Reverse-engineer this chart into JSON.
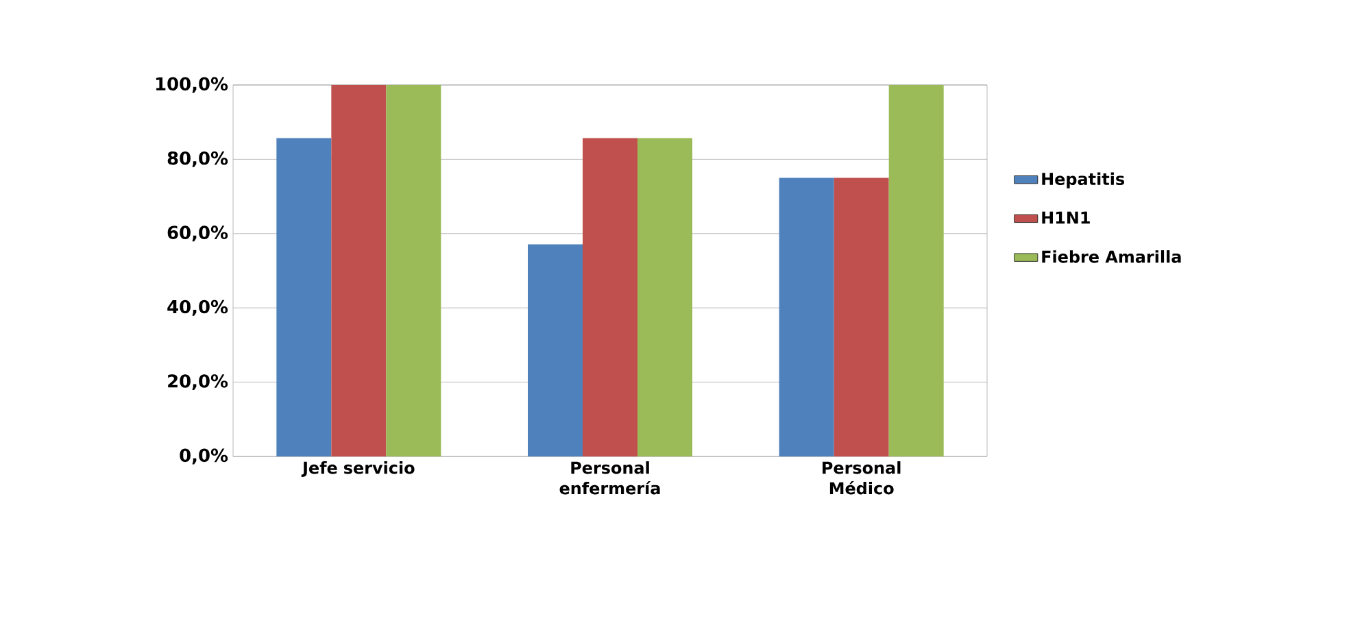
{
  "chart_data": {
    "type": "bar",
    "categories": [
      "Jefe servicio",
      "Personal enfermería",
      "Personal Médico"
    ],
    "series": [
      {
        "name": "Hepatitis",
        "color": "#4f81bd",
        "values": [
          85.7,
          57.1,
          75
        ]
      },
      {
        "name": "H1N1",
        "color": "#c0504d",
        "values": [
          100,
          85.7,
          75
        ]
      },
      {
        "name": "Fiebre Amarilla",
        "color": "#9bbb59",
        "values": [
          100,
          85.7,
          100
        ]
      }
    ],
    "ylim": [
      0,
      100
    ],
    "yticks": [
      {
        "value": 0,
        "label": "0,0%"
      },
      {
        "value": 20,
        "label": "20,0%"
      },
      {
        "value": 40,
        "label": "40,0%"
      },
      {
        "value": 60,
        "label": "60,0%"
      },
      {
        "value": 80,
        "label": "80,0%"
      },
      {
        "value": 100,
        "label": "100,0%"
      }
    ],
    "grid": "y",
    "legend": "right"
  }
}
